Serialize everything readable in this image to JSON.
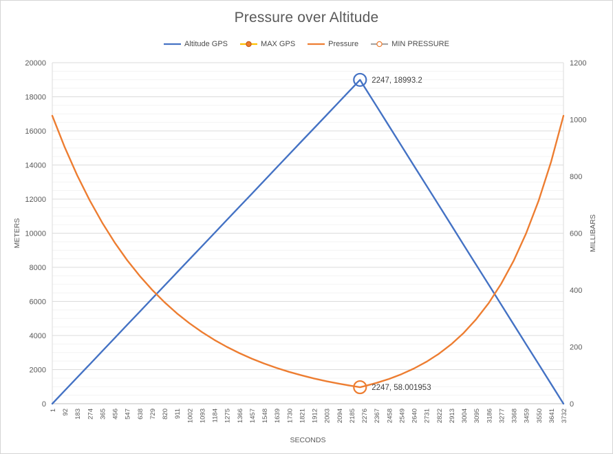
{
  "chart_data": {
    "type": "line",
    "title": "Pressure over Altitude",
    "axes": {
      "x": {
        "title": "SECONDS",
        "ticks": [
          1,
          92,
          183,
          274,
          365,
          456,
          547,
          638,
          729,
          820,
          911,
          1002,
          1093,
          1184,
          1275,
          1366,
          1457,
          1548,
          1639,
          1730,
          1821,
          1912,
          2003,
          2094,
          2185,
          2276,
          2367,
          2458,
          2549,
          2640,
          2731,
          2822,
          2913,
          3004,
          3095,
          3186,
          3277,
          3368,
          3459,
          3550,
          3641,
          3732
        ]
      },
      "left": {
        "title": "METERS",
        "min": 0,
        "max": 20000,
        "ticks": [
          0,
          2000,
          4000,
          6000,
          8000,
          10000,
          12000,
          14000,
          16000,
          18000,
          20000
        ]
      },
      "right": {
        "title": "MILLIBARS",
        "min": 0,
        "max": 1200,
        "ticks": [
          0,
          200,
          400,
          600,
          800,
          1000,
          1200
        ]
      }
    },
    "grid": {
      "major_step": 2000,
      "minor_step": 500,
      "major_color": "#dbdbdb",
      "minor_color": "#f3f3f3",
      "axis_color": "#bfbfbf"
    },
    "series": [
      {
        "name": "Altitude GPS",
        "axis": "left",
        "color": "#4472C4",
        "x": [
          1,
          92,
          183,
          274,
          365,
          456,
          547,
          638,
          729,
          820,
          911,
          1002,
          1093,
          1184,
          1275,
          1366,
          1457,
          1548,
          1639,
          1730,
          1821,
          1912,
          2003,
          2094,
          2185,
          2247,
          2276,
          2367,
          2458,
          2549,
          2640,
          2731,
          2822,
          2913,
          3004,
          3095,
          3186,
          3277,
          3368,
          3459,
          3550,
          3641,
          3732
        ],
        "y": [
          0,
          770,
          1539,
          2309,
          3078,
          3848,
          4617,
          5387,
          6157,
          6926,
          7696,
          8465,
          9235,
          10005,
          10774,
          11544,
          12313,
          13083,
          13853,
          14622,
          15392,
          16161,
          16931,
          17701,
          18470,
          18993.2,
          18622,
          17458,
          16294,
          15131,
          13967,
          12803,
          11639,
          10475,
          9311,
          8147,
          6984,
          5820,
          4656,
          3492,
          2328,
          1164,
          0
        ]
      },
      {
        "name": "MAX GPS",
        "axis": "left",
        "line_color": "#FFC000",
        "marker": {
          "stroke": "#4472C4",
          "radius": 9
        },
        "legend_marker": {
          "fill": "#ED7D31",
          "stroke": "#C55A11"
        },
        "points": [
          [
            2247,
            18993.2
          ]
        ]
      },
      {
        "name": "Pressure",
        "axis": "right",
        "color": "#ED7D31",
        "x": [
          1,
          92,
          183,
          274,
          365,
          456,
          547,
          638,
          729,
          820,
          911,
          1002,
          1093,
          1184,
          1275,
          1366,
          1457,
          1548,
          1639,
          1730,
          1821,
          1912,
          2003,
          2094,
          2185,
          2247,
          2276,
          2367,
          2458,
          2549,
          2640,
          2731,
          2822,
          2913,
          3004,
          3095,
          3186,
          3277,
          3368,
          3459,
          3550,
          3641,
          3732
        ],
        "y": [
          1013.3,
          902.3,
          803.6,
          715.6,
          637.4,
          567.6,
          505.5,
          450.2,
          400.9,
          357.0,
          317.9,
          283.1,
          252.1,
          224.5,
          200.0,
          178.1,
          158.6,
          141.2,
          125.8,
          112.0,
          99.8,
          88.8,
          79.1,
          70.5,
          62.8,
          58.001953,
          61.3,
          73.1,
          87.1,
          103.8,
          123.6,
          147.4,
          175.5,
          209.2,
          249.3,
          297.1,
          353.9,
          421.7,
          502.5,
          598.8,
          713.6,
          850.3,
          1013.3
        ]
      },
      {
        "name": "MIN PRESSURE",
        "axis": "right",
        "line_color": "#A5A5A5",
        "marker": {
          "stroke": "#ED7D31",
          "radius": 9
        },
        "legend_marker": {
          "fill": "#FFFFFF",
          "stroke": "#ED7D31"
        },
        "points": [
          [
            2247,
            58.001953
          ]
        ]
      }
    ],
    "annotations": [
      {
        "text": "2247, 18993.2",
        "axis": "left",
        "x": 2247,
        "value": 18993.2
      },
      {
        "text": "2247, 58.001953",
        "axis": "right",
        "x": 2247,
        "value": 58.001953
      }
    ],
    "text_color": "#595959",
    "annotation_color": "#3f3f3f"
  }
}
